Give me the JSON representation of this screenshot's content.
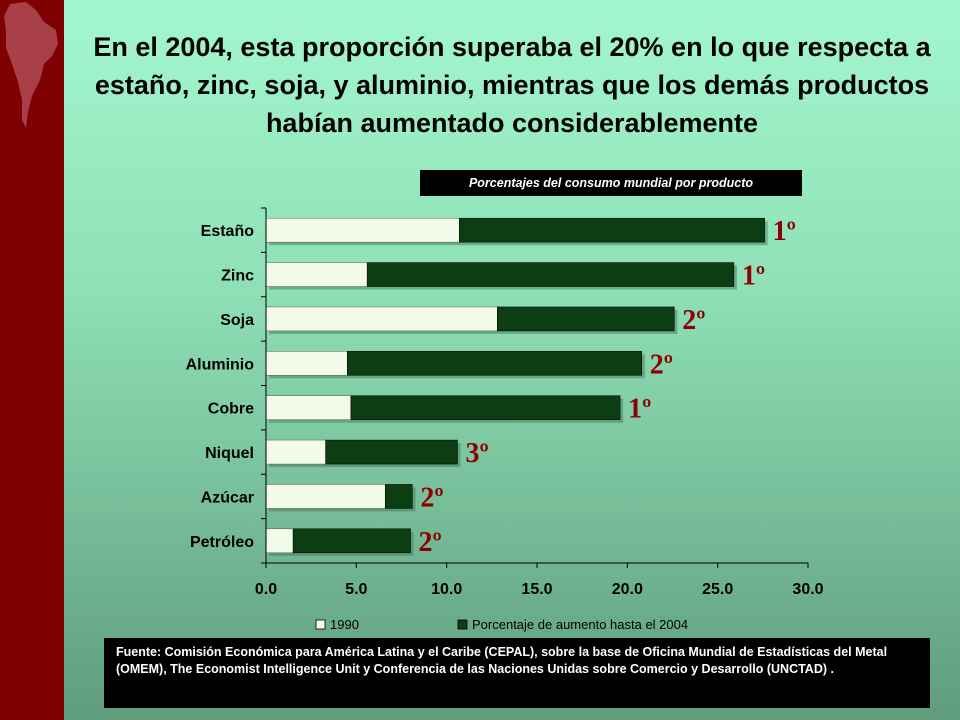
{
  "title": "En el 2004, esta proporción superaba el 20% en lo que respecta a estaño, zinc, soja, y aluminio, mientras que los demás productos habían aumentado considerablemente",
  "colors": {
    "sidebar": "#7e0000",
    "series_1990": "#f2fbe9",
    "series_increase": "#0d3d12",
    "rank_text": "#8b0000"
  },
  "chart_data": {
    "type": "bar",
    "orientation": "horizontal",
    "stacked": true,
    "title": "Porcentajes del consumo mundial por producto",
    "categories": [
      "Estaño",
      "Zinc",
      "Soja",
      "Aluminio",
      "Cobre",
      "Niquel",
      "Azúcar",
      "Petróleo"
    ],
    "series": [
      {
        "name": "1990",
        "values": [
          10.7,
          5.6,
          12.8,
          4.5,
          4.7,
          3.3,
          6.6,
          1.5
        ]
      },
      {
        "name": "Porcentaje de aumento hasta el 2004",
        "values": [
          16.9,
          20.3,
          9.8,
          16.3,
          14.9,
          7.3,
          1.5,
          6.5
        ]
      }
    ],
    "rank_labels": [
      "1º",
      "1º",
      "2º",
      "2º",
      "1º",
      "3º",
      "2º",
      "2º"
    ],
    "xlim": [
      0,
      30
    ],
    "xticks": [
      "0.0",
      "5.0",
      "10.0",
      "15.0",
      "20.0",
      "25.0",
      "30.0"
    ],
    "grid": false,
    "legend_position": "bottom"
  },
  "source": "Fuente: Comisión Económica para América Latina y el Caribe (CEPAL), sobre la base de Oficina Mundial de Estadísticas del Metal (OMEM), The Economist Intelligence Unit y Conferencia de las Naciones Unidas sobre Comercio y Desarrollo (UNCTAD) ."
}
